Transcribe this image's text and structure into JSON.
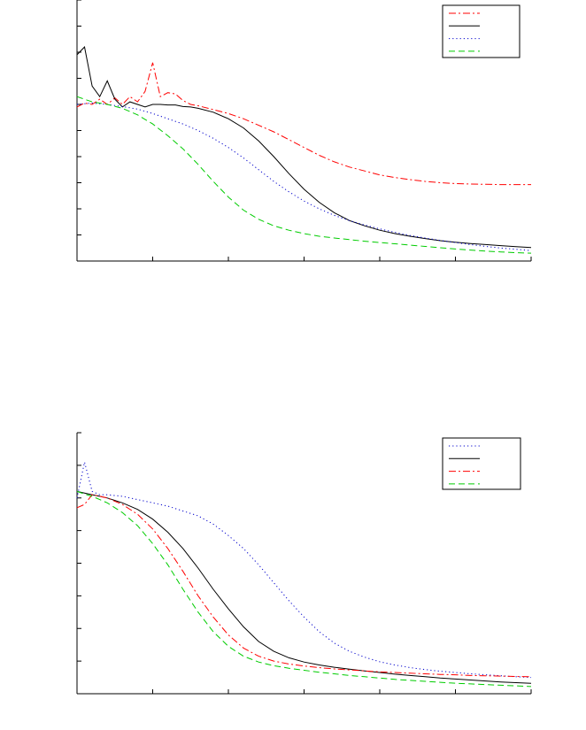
{
  "chart_data": [
    {
      "type": "line",
      "title": "",
      "xlabel": "",
      "ylabel": "",
      "xlim": [
        0,
        30
      ],
      "ylim": [
        0,
        10
      ],
      "x_ticks": [
        0,
        5,
        10,
        15,
        20,
        25,
        30
      ],
      "y_ticks": [
        0,
        1,
        2,
        3,
        4,
        5,
        6,
        7,
        8,
        9,
        10
      ],
      "grid": false,
      "legend": "top-right",
      "series": [
        {
          "color": "#ff0000",
          "style": "dashdot",
          "x": [
            0,
            0.5,
            1,
            1.5,
            2,
            2.5,
            3,
            3.5,
            4,
            4.5,
            5,
            5.5,
            6,
            6.5,
            7,
            7.5,
            8,
            9,
            10,
            11,
            12,
            13,
            14,
            15,
            16,
            17,
            18,
            19,
            20,
            21,
            22,
            23,
            24,
            25,
            26,
            27,
            28,
            29,
            30
          ],
          "y": [
            5.9,
            6.05,
            6.0,
            6.2,
            6.0,
            6.25,
            6.0,
            6.3,
            6.1,
            6.5,
            7.6,
            6.3,
            6.45,
            6.4,
            6.15,
            6.0,
            5.95,
            5.8,
            5.65,
            5.45,
            5.2,
            4.95,
            4.65,
            4.35,
            4.05,
            3.8,
            3.6,
            3.45,
            3.3,
            3.2,
            3.12,
            3.05,
            3.0,
            2.97,
            2.95,
            2.94,
            2.93,
            2.93,
            2.93
          ]
        },
        {
          "color": "#000000",
          "style": "solid",
          "x": [
            0,
            0.5,
            1,
            1.5,
            2,
            2.5,
            3,
            3.5,
            4,
            4.5,
            5,
            5.5,
            6,
            6.5,
            7,
            7.5,
            8,
            9,
            10,
            11,
            12,
            13,
            14,
            15,
            16,
            17,
            18,
            19,
            20,
            21,
            22,
            23,
            24,
            25,
            26,
            27,
            28,
            29,
            30
          ],
          "y": [
            7.9,
            8.2,
            6.7,
            6.3,
            6.9,
            6.2,
            5.9,
            6.1,
            6.0,
            5.9,
            6.0,
            6.0,
            5.98,
            5.98,
            5.92,
            5.9,
            5.85,
            5.7,
            5.45,
            5.1,
            4.6,
            4.0,
            3.35,
            2.75,
            2.25,
            1.85,
            1.55,
            1.35,
            1.18,
            1.05,
            0.95,
            0.86,
            0.78,
            0.72,
            0.67,
            0.63,
            0.59,
            0.55,
            0.52
          ]
        },
        {
          "color": "#0000cc",
          "style": "dotted",
          "x": [
            0,
            1,
            2,
            3,
            4,
            5,
            6,
            7,
            8,
            9,
            10,
            11,
            12,
            13,
            14,
            15,
            16,
            17,
            18,
            19,
            20,
            21,
            22,
            23,
            24,
            25,
            26,
            27,
            28,
            29,
            30
          ],
          "y": [
            6.0,
            6.05,
            6.0,
            5.92,
            5.82,
            5.65,
            5.45,
            5.25,
            5.0,
            4.7,
            4.35,
            3.95,
            3.5,
            3.05,
            2.65,
            2.3,
            2.0,
            1.75,
            1.55,
            1.38,
            1.23,
            1.1,
            0.98,
            0.88,
            0.79,
            0.71,
            0.63,
            0.56,
            0.5,
            0.45,
            0.4
          ]
        },
        {
          "color": "#00cc00",
          "style": "dashed",
          "x": [
            0,
            1,
            2,
            3,
            4,
            5,
            6,
            7,
            8,
            9,
            10,
            11,
            12,
            13,
            14,
            15,
            16,
            17,
            18,
            19,
            20,
            21,
            22,
            23,
            24,
            25,
            26,
            27,
            28,
            29,
            30
          ],
          "y": [
            6.3,
            6.1,
            6.0,
            5.85,
            5.6,
            5.25,
            4.8,
            4.3,
            3.7,
            3.05,
            2.45,
            1.95,
            1.6,
            1.35,
            1.18,
            1.05,
            0.95,
            0.88,
            0.82,
            0.76,
            0.71,
            0.66,
            0.61,
            0.56,
            0.51,
            0.46,
            0.42,
            0.38,
            0.35,
            0.32,
            0.3
          ]
        }
      ]
    },
    {
      "type": "line",
      "title": "",
      "xlabel": "",
      "ylabel": "",
      "xlim": [
        0,
        30
      ],
      "ylim": [
        0,
        8
      ],
      "x_ticks": [
        0,
        5,
        10,
        15,
        20,
        25,
        30
      ],
      "y_ticks": [
        0,
        1,
        2,
        3,
        4,
        5,
        6,
        7,
        8
      ],
      "grid": false,
      "legend": "top-right",
      "series": [
        {
          "color": "#0000cc",
          "style": "dotted",
          "x": [
            0,
            0.5,
            1,
            1.5,
            2,
            3,
            4,
            5,
            6,
            7,
            8,
            9,
            10,
            11,
            12,
            13,
            14,
            15,
            16,
            17,
            18,
            19,
            20,
            21,
            22,
            23,
            24,
            25,
            26,
            27,
            28,
            29,
            30
          ],
          "y": [
            6.0,
            7.1,
            6.2,
            6.1,
            6.1,
            6.05,
            5.95,
            5.85,
            5.75,
            5.6,
            5.45,
            5.2,
            4.85,
            4.45,
            3.95,
            3.4,
            2.85,
            2.35,
            1.9,
            1.55,
            1.3,
            1.12,
            0.98,
            0.88,
            0.8,
            0.74,
            0.69,
            0.65,
            0.61,
            0.58,
            0.55,
            0.52,
            0.5
          ]
        },
        {
          "color": "#000000",
          "style": "solid",
          "x": [
            0,
            0.5,
            1,
            1.5,
            2,
            3,
            4,
            5,
            6,
            7,
            8,
            9,
            10,
            11,
            12,
            13,
            14,
            15,
            16,
            17,
            18,
            19,
            20,
            21,
            22,
            23,
            24,
            25,
            26,
            27,
            28,
            29,
            30
          ],
          "y": [
            6.2,
            6.15,
            6.1,
            6.05,
            6.0,
            5.85,
            5.65,
            5.35,
            4.95,
            4.45,
            3.85,
            3.2,
            2.6,
            2.05,
            1.6,
            1.3,
            1.1,
            0.97,
            0.88,
            0.81,
            0.75,
            0.7,
            0.65,
            0.6,
            0.56,
            0.52,
            0.48,
            0.45,
            0.42,
            0.39,
            0.36,
            0.34,
            0.32
          ]
        },
        {
          "color": "#ff0000",
          "style": "dashdot",
          "x": [
            0,
            0.5,
            1,
            1.5,
            2,
            3,
            4,
            5,
            6,
            7,
            8,
            9,
            10,
            11,
            12,
            13,
            14,
            15,
            16,
            17,
            18,
            19,
            20,
            21,
            22,
            23,
            24,
            25,
            26,
            27,
            28,
            29,
            30
          ],
          "y": [
            5.7,
            5.8,
            6.1,
            6.05,
            6.0,
            5.8,
            5.5,
            5.05,
            4.45,
            3.75,
            3.0,
            2.35,
            1.8,
            1.4,
            1.15,
            1.0,
            0.91,
            0.85,
            0.8,
            0.76,
            0.73,
            0.7,
            0.67,
            0.65,
            0.63,
            0.61,
            0.59,
            0.58,
            0.56,
            0.55,
            0.54,
            0.53,
            0.52
          ]
        },
        {
          "color": "#00cc00",
          "style": "dashed",
          "x": [
            0,
            0.5,
            1,
            1.5,
            2,
            3,
            4,
            5,
            6,
            7,
            8,
            9,
            10,
            11,
            12,
            13,
            14,
            15,
            16,
            17,
            18,
            19,
            20,
            21,
            22,
            23,
            24,
            25,
            26,
            27,
            28,
            29,
            30
          ],
          "y": [
            6.2,
            6.12,
            6.05,
            5.95,
            5.85,
            5.55,
            5.15,
            4.6,
            3.95,
            3.2,
            2.5,
            1.9,
            1.45,
            1.15,
            0.97,
            0.86,
            0.78,
            0.72,
            0.66,
            0.61,
            0.56,
            0.52,
            0.48,
            0.44,
            0.41,
            0.38,
            0.35,
            0.32,
            0.3,
            0.28,
            0.26,
            0.24,
            0.22
          ]
        }
      ]
    }
  ]
}
